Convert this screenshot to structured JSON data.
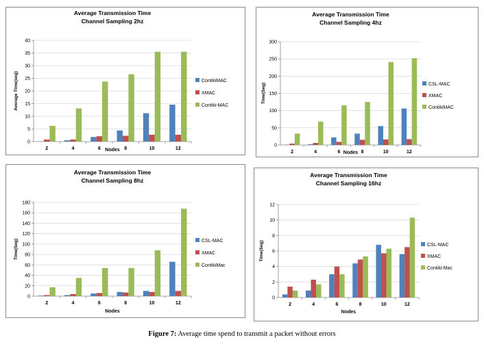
{
  "figure_caption": {
    "label": "Figure 7:",
    "text": "Average time spend to transmit a packet without errors"
  },
  "chart_data": [
    {
      "type": "bar",
      "title": "Average Transmission Time",
      "subtitle": "Channel Sampling 2hz",
      "xlabel": "Nodes",
      "ylabel": "Average Time(seg)",
      "categories": [
        "2",
        "4",
        "6",
        "8",
        "10",
        "12"
      ],
      "ylim": [
        0,
        40
      ],
      "yticks": [
        0,
        5,
        10,
        15,
        20,
        25,
        30,
        35,
        40
      ],
      "grid": true,
      "legend": "right",
      "series": [
        {
          "name": "ContikiMAC",
          "color": "#4f81bd",
          "values": [
            0.1,
            0.5,
            1.8,
            4.4,
            11.2,
            14.6
          ]
        },
        {
          "name": "XMAC",
          "color": "#c0504d",
          "values": [
            0.8,
            0.8,
            2.1,
            2.3,
            2.7,
            2.7
          ]
        },
        {
          "name": "Contiki-MAC",
          "color": "#9bbb59",
          "values": [
            6.2,
            13.1,
            23.7,
            26.6,
            35.5,
            35.5
          ]
        }
      ]
    },
    {
      "type": "bar",
      "title": "Average Transmission Time",
      "subtitle": "Channel Sampling 4hz",
      "xlabel": "Nodes",
      "ylabel": "Time(Seg)",
      "categories": [
        "2",
        "4",
        "6",
        "8",
        "10",
        "12"
      ],
      "ylim": [
        0,
        300
      ],
      "yticks": [
        0,
        50,
        100,
        150,
        200,
        250,
        300
      ],
      "grid": true,
      "legend": "right",
      "series": [
        {
          "name": "CSL-MAC",
          "color": "#4f81bd",
          "values": [
            1,
            2,
            22,
            33,
            55,
            106
          ]
        },
        {
          "name": "XMAC",
          "color": "#c0504d",
          "values": [
            4,
            6,
            9,
            15,
            16,
            17
          ]
        },
        {
          "name": "ContikiMAC",
          "color": "#9bbb59",
          "values": [
            33,
            68,
            115,
            125,
            241,
            252
          ]
        }
      ]
    },
    {
      "type": "bar",
      "title": "Average Transmission Time",
      "subtitle": "Channel Sampling 8hz",
      "xlabel": "Nodes",
      "ylabel": "Time(Seg)",
      "categories": [
        "2",
        "4",
        "6",
        "8",
        "10",
        "12"
      ],
      "ylim": [
        0,
        180
      ],
      "yticks": [
        0,
        20,
        40,
        60,
        80,
        100,
        120,
        140,
        160,
        180
      ],
      "grid": true,
      "legend": "right",
      "series": [
        {
          "name": "CSL-MAC",
          "color": "#4f81bd",
          "values": [
            1,
            2,
            5,
            8,
            10,
            66
          ]
        },
        {
          "name": "XMAC",
          "color": "#c0504d",
          "values": [
            2,
            4,
            6,
            7,
            8,
            10
          ]
        },
        {
          "name": "ContikiMac",
          "color": "#9bbb59",
          "values": [
            17,
            35,
            54,
            54,
            88,
            168
          ]
        }
      ]
    },
    {
      "type": "bar",
      "title": "Average Transmission Time",
      "subtitle": "Channel Sampling 16hz",
      "xlabel": "Nodes",
      "ylabel": "Time(Seg)",
      "categories": [
        "2",
        "4",
        "6",
        "8",
        "10",
        "12"
      ],
      "ylim": [
        0,
        12
      ],
      "yticks": [
        0,
        2,
        4,
        6,
        8,
        10,
        12
      ],
      "grid": true,
      "legend": "right",
      "series": [
        {
          "name": "CSL-MAC",
          "color": "#4f81bd",
          "values": [
            0.4,
            0.9,
            3.0,
            4.4,
            6.8,
            5.6
          ]
        },
        {
          "name": "XMAC",
          "color": "#c0504d",
          "values": [
            1.4,
            2.3,
            4.0,
            4.9,
            5.7,
            6.5
          ]
        },
        {
          "name": "Contiki-Mac",
          "color": "#9bbb59",
          "values": [
            0.9,
            1.7,
            3.0,
            5.3,
            6.3,
            10.3
          ]
        }
      ]
    }
  ]
}
